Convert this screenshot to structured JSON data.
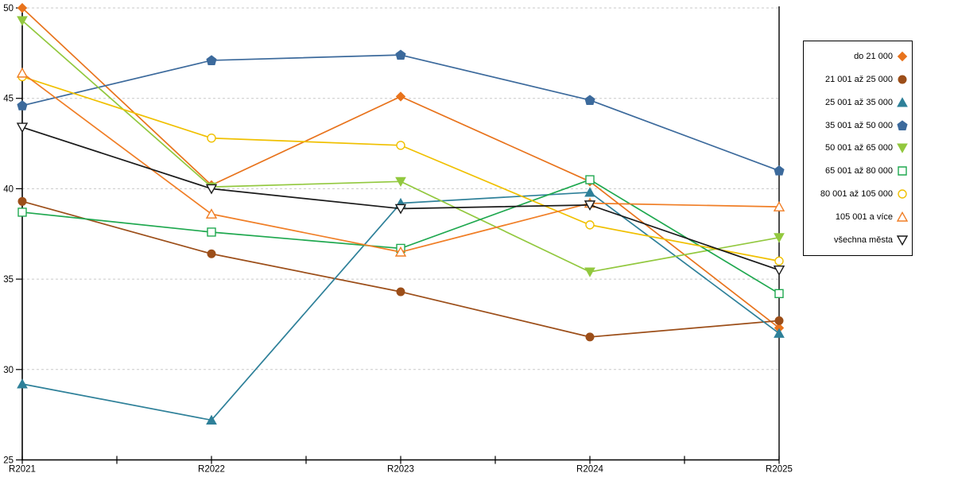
{
  "chart_data": {
    "type": "line",
    "title": "",
    "xlabel": "",
    "ylabel": "",
    "x_categories": [
      "R2021",
      "R2022",
      "R2023",
      "R2024",
      "R2025"
    ],
    "y_ticks": [
      25,
      30,
      35,
      40,
      45,
      50
    ],
    "ylim": [
      25,
      50
    ],
    "grid": "horizontal dashed",
    "legend_position": "right",
    "axis_color": "#000000",
    "grid_color": "#c9c9c9",
    "series": [
      {
        "name": "do 21 000",
        "color": "#e8731c",
        "marker": "diamond",
        "fill": "solid",
        "values": [
          50.0,
          40.2,
          45.1,
          40.4,
          32.3
        ]
      },
      {
        "name": "21 001 až 25 000",
        "color": "#9c4e19",
        "marker": "circle",
        "fill": "solid",
        "values": [
          39.3,
          36.4,
          34.3,
          31.8,
          32.7
        ]
      },
      {
        "name": "25 001 až 35 000",
        "color": "#2e8099",
        "marker": "triangle-up",
        "fill": "solid",
        "values": [
          29.2,
          27.2,
          39.2,
          39.8,
          32.0
        ]
      },
      {
        "name": "35 001 až 50 000",
        "color": "#3c6a9c",
        "marker": "pentagon",
        "fill": "solid",
        "values": [
          44.6,
          47.1,
          47.4,
          44.9,
          41.0
        ]
      },
      {
        "name": "50 001 až 65 000",
        "color": "#92c83e",
        "marker": "triangle-down",
        "fill": "solid",
        "values": [
          49.3,
          40.1,
          40.4,
          35.4,
          37.3
        ]
      },
      {
        "name": "65 001 až 80 000",
        "color": "#1fa84f",
        "marker": "square",
        "fill": "open",
        "values": [
          38.7,
          37.6,
          36.7,
          40.5,
          34.2
        ]
      },
      {
        "name": "80 001 až 105 000",
        "color": "#f0c000",
        "marker": "circle",
        "fill": "open",
        "values": [
          46.2,
          42.8,
          42.4,
          38.0,
          36.0
        ]
      },
      {
        "name": "105 001 a více",
        "color": "#f07e26",
        "marker": "triangle-up",
        "fill": "open",
        "values": [
          46.4,
          38.6,
          36.5,
          39.2,
          39.0
        ]
      },
      {
        "name": "všechna města",
        "color": "#1a1a1a",
        "marker": "triangle-down",
        "fill": "open",
        "values": [
          43.4,
          40.0,
          38.9,
          39.1,
          35.5
        ]
      }
    ]
  }
}
